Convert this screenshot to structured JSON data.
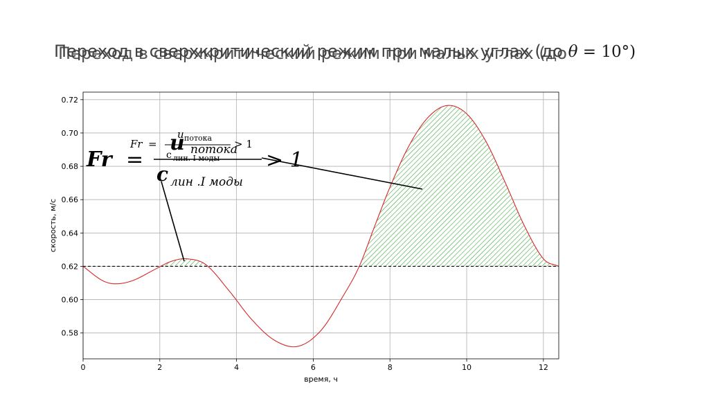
{
  "slide": {
    "title_text": "Переход в сверхкритический режим при малых углах (до ",
    "title_math_symbol": "θ",
    "title_math_rest": " = 10°)"
  },
  "formula_large": {
    "lhs": "Fr",
    "eq": "=",
    "numerator": "u",
    "numerator_sub": "потока",
    "denominator": "c",
    "denominator_sub": "лин .I моды",
    "rhs": "> 1"
  },
  "formula_small": {
    "lhs": "Fr",
    "eq": "=",
    "numerator": "u",
    "numerator_sub": "потока",
    "denominator": "c",
    "denominator_sub": "лин. I моды",
    "rhs": "> 1"
  },
  "chart_data": {
    "type": "line",
    "title": "",
    "xlabel": "время, ч",
    "ylabel": "скорость, м/с",
    "xlim": [
      0,
      12.4
    ],
    "ylim": [
      0.5645,
      0.7245
    ],
    "x_ticks": [
      "0",
      "2",
      "4",
      "6",
      "8",
      "10",
      "12"
    ],
    "y_ticks": [
      "0.58",
      "0.60",
      "0.62",
      "0.64",
      "0.66",
      "0.68",
      "0.70",
      "0.72"
    ],
    "grid": true,
    "threshold": 0.62,
    "series": [
      {
        "color": "#d62728",
        "x": [
          0,
          0.5,
          0.85,
          1.3,
          1.9,
          2.3,
          2.7,
          3.2,
          3.8,
          4.4,
          5.0,
          5.6,
          6.2,
          6.8,
          7.2,
          7.6,
          8.0,
          8.5,
          9.0,
          9.5,
          10.0,
          10.5,
          11.0,
          11.5,
          12.0,
          12.4
        ],
        "y": [
          0.62,
          0.6115,
          0.6095,
          0.6115,
          0.6185,
          0.623,
          0.6245,
          0.621,
          0.6055,
          0.588,
          0.5755,
          0.572,
          0.5815,
          0.603,
          0.62,
          0.644,
          0.6675,
          0.6925,
          0.7095,
          0.7165,
          0.7115,
          0.695,
          0.6705,
          0.6445,
          0.6245,
          0.62
        ]
      }
    ],
    "shaded_regions": [
      [
        2.0,
        3.45
      ],
      [
        7.2,
        12.4
      ]
    ],
    "fill_color": "#2ca02c"
  }
}
